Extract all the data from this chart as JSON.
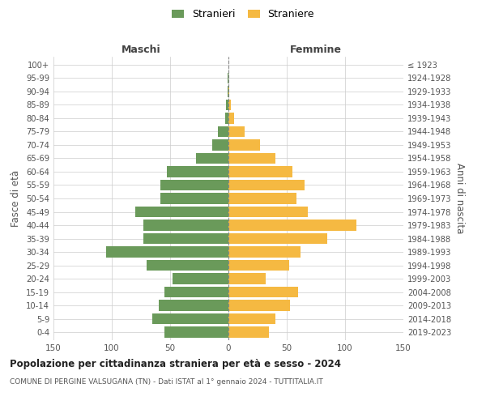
{
  "age_groups": [
    "0-4",
    "5-9",
    "10-14",
    "15-19",
    "20-24",
    "25-29",
    "30-34",
    "35-39",
    "40-44",
    "45-49",
    "50-54",
    "55-59",
    "60-64",
    "65-69",
    "70-74",
    "75-79",
    "80-84",
    "85-89",
    "90-94",
    "95-99",
    "100+"
  ],
  "birth_years": [
    "2019-2023",
    "2014-2018",
    "2009-2013",
    "2004-2008",
    "1999-2003",
    "1994-1998",
    "1989-1993",
    "1984-1988",
    "1979-1983",
    "1974-1978",
    "1969-1973",
    "1964-1968",
    "1959-1963",
    "1954-1958",
    "1949-1953",
    "1944-1948",
    "1939-1943",
    "1934-1938",
    "1929-1933",
    "1924-1928",
    "≤ 1923"
  ],
  "males": [
    55,
    65,
    60,
    55,
    48,
    70,
    105,
    73,
    73,
    80,
    58,
    58,
    53,
    28,
    14,
    9,
    3,
    2,
    1,
    1,
    0
  ],
  "females": [
    35,
    40,
    53,
    60,
    32,
    52,
    62,
    85,
    110,
    68,
    58,
    65,
    55,
    40,
    27,
    14,
    5,
    2,
    1,
    0,
    0
  ],
  "male_color": "#6a9a5a",
  "female_color": "#f5b942",
  "male_label": "Stranieri",
  "female_label": "Straniere",
  "title": "Popolazione per cittadinanza straniera per età e sesso - 2024",
  "subtitle": "COMUNE DI PERGINE VALSUGANA (TN) - Dati ISTAT al 1° gennaio 2024 - TUTTITALIA.IT",
  "ylabel_left": "Fasce di età",
  "ylabel_right": "Anni di nascita",
  "xlabel_left": "Maschi",
  "xlabel_right": "Femmine",
  "xlim": 150,
  "background_color": "#ffffff",
  "grid_color": "#cccccc",
  "bar_height": 0.82
}
